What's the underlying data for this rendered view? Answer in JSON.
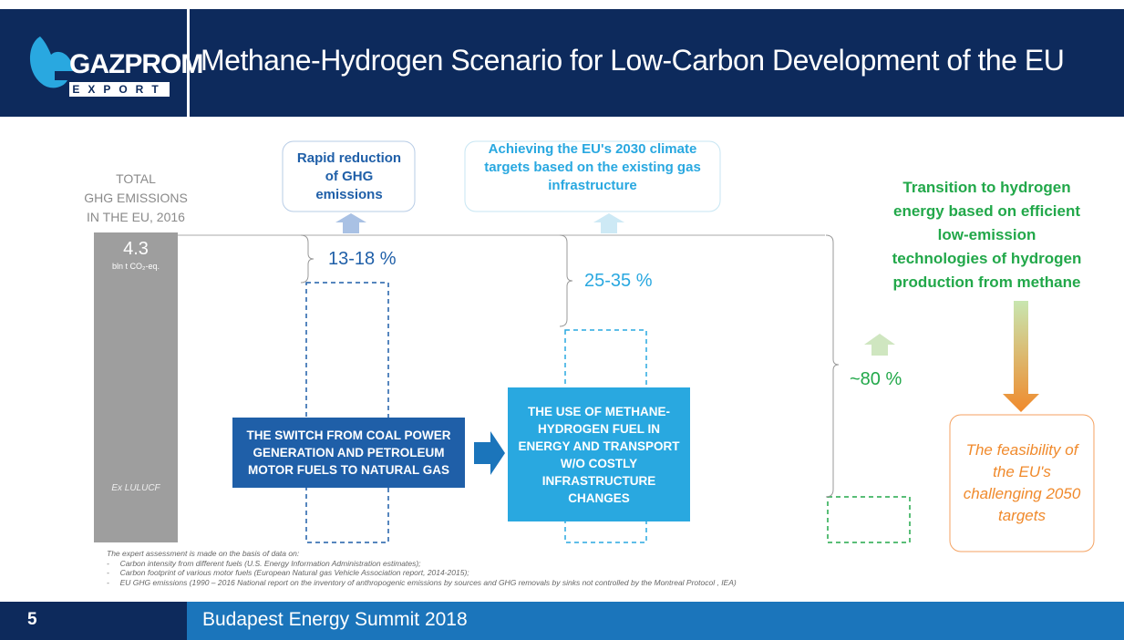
{
  "header": {
    "logo": {
      "name": "GAZPROM",
      "sub": "EXPORT"
    },
    "title": "Methane-Hydrogen Scenario for Low-Carbon Development of the EU"
  },
  "total": {
    "label": [
      "TOTAL",
      "GHG EMISSIONS",
      "IN THE EU, 2016"
    ],
    "value": "4.3",
    "unit": "bln t CO₂-eq.",
    "note": "Ex LULUCF"
  },
  "goals": {
    "rapid": "Rapid reduction of GHG emissions",
    "achieving": "Achieving the EU's 2030 climate targets based on the existing gas infrastructure",
    "transition": "Transition to hydrogen energy based on efficient low-emission technologies of hydrogen production from methane"
  },
  "reductions": [
    "13-18 %",
    "25-35 %",
    "~80 %"
  ],
  "measures": [
    "THE SWITCH FROM COAL POWER GENERATION AND PETROLEUM MOTOR FUELS  TO NATURAL GAS",
    "THE USE OF METHANE-HYDROGEN FUEL IN ENERGY AND TRANSPORT W/O COSTLY INFRASTRUCTURE CHANGES"
  ],
  "outcome": "The feasibility of the EU's challenging 2050 targets",
  "footnotes": [
    "The expert assessment is made on the basis of data on:",
    "-     Carbon intensity from different fuels (U.S. Energy Information Administration estimates);",
    "-     Carbon footprint of various motor fuels (European Natural gas Vehicle Association report, 2014-2015);",
    "-     EU GHG emissions (1990 – 2016 National report on the inventory of anthropogenic emissions by sources and GHG removals by sinks not controlled by the Montreal Protocol , IEA)"
  ],
  "footer": {
    "page": "5",
    "event": "Budapest Energy Summit 2018"
  }
}
